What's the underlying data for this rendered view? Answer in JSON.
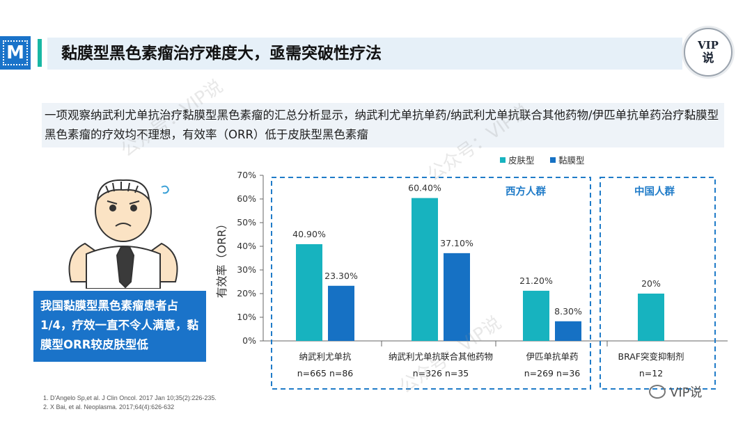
{
  "header": {
    "logo_text": "M",
    "title": "黏膜型黑色素瘤治疗难度大，亟需突破性疗法",
    "badge_line1": "VIP",
    "badge_line2": "说"
  },
  "intro": {
    "text": "一项观察纳武利尤单抗治疗黏膜型黑色素瘤的汇总分析显示，纳武利尤单抗单药/纳武利尤单抗联合其他药物/伊匹单抗单药治疗黏膜型黑色素瘤的疗效均不理想，有效率（ORR）低于皮肤型黑色素瘤"
  },
  "callout": {
    "text": "我国黏膜型黑色素瘤患者占1/4，疗效一直不令人满意，黏膜型ORR较皮肤型低"
  },
  "references": [
    "1. D'Angelo Sp,et al. J Clin Oncol. 2017 Jan 10;35(2):226-235.",
    "2. X Bai, et al. Neoplasma. 2017;64(4):626-632"
  ],
  "footer": {
    "brand": "VIP说"
  },
  "watermarks": [
    "公众号：VIP说",
    "公众号：VIP说",
    "公众号：VIP说"
  ],
  "colors": {
    "cutaneous": "#17b3bf",
    "mucosal": "#1671c4",
    "group_border": "#1f7bc8",
    "group_label": "#1f7bc8"
  },
  "chart_data": {
    "type": "bar",
    "ylabel": "有效率（ORR）",
    "ylim": [
      0,
      70
    ],
    "yticks": [
      "0%",
      "10%",
      "20%",
      "30%",
      "40%",
      "50%",
      "60%",
      "70%"
    ],
    "legend_position": "top-right",
    "series": [
      {
        "name": "皮肤型",
        "color": "#17b3bf"
      },
      {
        "name": "黏膜型",
        "color": "#1671c4"
      }
    ],
    "groups": [
      {
        "label": "西方人群",
        "categories": [
          0,
          1,
          2
        ]
      },
      {
        "label": "中国人群",
        "categories": [
          3
        ]
      }
    ],
    "categories": [
      {
        "name": "纳武利尤单抗",
        "n_label": "n=665 n=86",
        "bars": [
          {
            "series": 0,
            "value": 40.9,
            "label": "40.90%"
          },
          {
            "series": 1,
            "value": 23.3,
            "label": "23.30%"
          }
        ]
      },
      {
        "name": "纳武利尤单抗联合其他药物",
        "n_label": "n=326  n=35",
        "bars": [
          {
            "series": 0,
            "value": 60.4,
            "label": "60.40%"
          },
          {
            "series": 1,
            "value": 37.1,
            "label": "37.10%"
          }
        ]
      },
      {
        "name": "伊匹单抗单药",
        "n_label": "n=269  n=36",
        "bars": [
          {
            "series": 0,
            "value": 21.2,
            "label": "21.20%"
          },
          {
            "series": 1,
            "value": 8.3,
            "label": "8.30%"
          }
        ]
      },
      {
        "name": "BRAF突变抑制剂",
        "n_label": "n=12",
        "bars": [
          {
            "series": 0,
            "value": 20,
            "label": "20%"
          }
        ]
      }
    ]
  }
}
